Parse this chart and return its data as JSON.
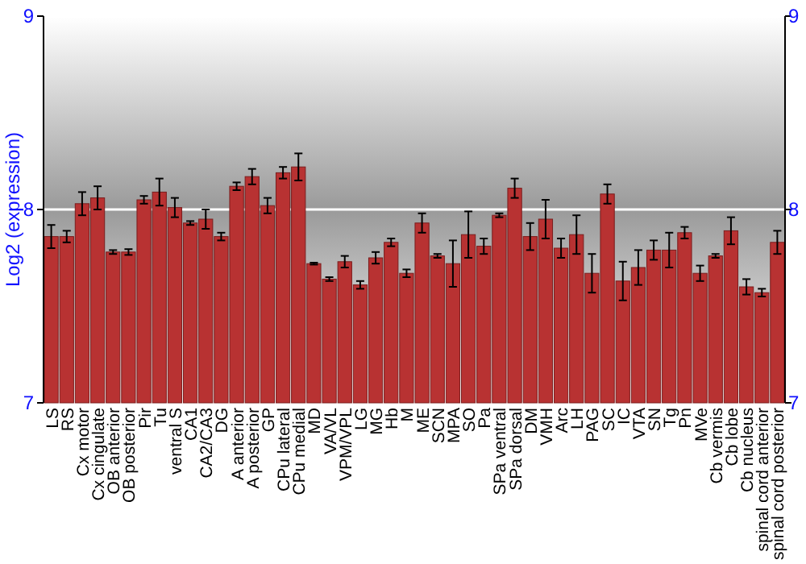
{
  "chart_data": {
    "type": "bar",
    "ylabel": "Log2 (expression)",
    "categories": [
      "LS",
      "RS",
      "Cx motor",
      "Cx cingulate",
      "OB anterior",
      "OB posterior",
      "Pir",
      "Tu",
      "ventral S",
      "CA1",
      "CA2/CA3",
      "DG",
      "A anterior",
      "A posterior",
      "GP",
      "CPu lateral",
      "CPu medial",
      "MD",
      "VA/VL",
      "VPM/VPL",
      "LG",
      "MG",
      "Hb",
      "M",
      "ME",
      "SCN",
      "MPA",
      "SO",
      "Pa",
      "SPa ventral",
      "SPa dorsal",
      "DM",
      "VMH",
      "Arc",
      "LH",
      "PAG",
      "SC",
      "IC",
      "VTA",
      "SN",
      "Tg",
      "Pn",
      "MVe",
      "Cb vermis",
      "Cb lobe",
      "Cb nucleus",
      "spinal cord anterior",
      "spinal cord posterior"
    ],
    "values": [
      7.86,
      7.86,
      8.03,
      8.06,
      7.78,
      7.78,
      8.05,
      8.09,
      8.01,
      7.93,
      7.95,
      7.86,
      8.12,
      8.17,
      8.02,
      8.19,
      8.22,
      7.72,
      7.64,
      7.73,
      7.61,
      7.75,
      7.83,
      7.67,
      7.93,
      7.76,
      7.72,
      7.87,
      7.81,
      7.97,
      8.11,
      7.86,
      7.95,
      7.8,
      7.87,
      7.67,
      8.08,
      7.63,
      7.7,
      7.79,
      7.79,
      7.88,
      7.67,
      7.76,
      7.89,
      7.6,
      7.57,
      7.83
    ],
    "errors": [
      0.06,
      0.03,
      0.06,
      0.06,
      0.01,
      0.015,
      0.02,
      0.07,
      0.05,
      0.01,
      0.05,
      0.02,
      0.02,
      0.04,
      0.04,
      0.03,
      0.07,
      0.005,
      0.01,
      0.03,
      0.02,
      0.03,
      0.02,
      0.02,
      0.05,
      0.01,
      0.12,
      0.12,
      0.04,
      0.01,
      0.05,
      0.07,
      0.1,
      0.05,
      0.1,
      0.1,
      0.05,
      0.1,
      0.09,
      0.05,
      0.09,
      0.03,
      0.04,
      0.01,
      0.07,
      0.04,
      0.02,
      0.06
    ],
    "color": "#b83232",
    "ylim": [
      7,
      9
    ],
    "yticks": [
      7,
      8,
      9
    ],
    "y2lim": [
      7,
      9
    ],
    "y2ticks": [
      7,
      8,
      9
    ],
    "grid": "y"
  }
}
